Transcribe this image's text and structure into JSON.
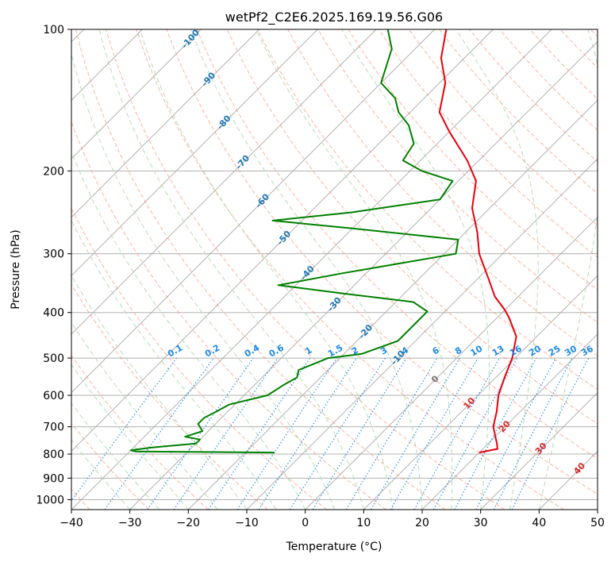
{
  "chart_data": {
    "type": "skew-t",
    "title": "wetPf2_C2E6.2025.169.19.56.G06",
    "xlabel": "Temperature (°C)",
    "ylabel": "Pressure (hPa)",
    "xlim": [
      -40,
      50
    ],
    "ylim": [
      1050,
      100
    ],
    "y_scale": "log",
    "grid": true,
    "x_ticks": [
      "−40",
      "−30",
      "−20",
      "−10",
      "0",
      "10",
      "20",
      "30",
      "40",
      "50"
    ],
    "y_ticks": [
      "100",
      "200",
      "300",
      "400",
      "500",
      "600",
      "700",
      "800",
      "900",
      "1000"
    ],
    "temperature_profile": {
      "color": "#e8000b",
      "points": [
        [
          794,
          20
        ],
        [
          780,
          22.5
        ],
        [
          760,
          21.5
        ],
        [
          700,
          18
        ],
        [
          650,
          16
        ],
        [
          600,
          13.5
        ],
        [
          550,
          11.5
        ],
        [
          500,
          9.5
        ],
        [
          450,
          6.5
        ],
        [
          410,
          2
        ],
        [
          395,
          0
        ],
        [
          370,
          -4
        ],
        [
          340,
          -8
        ],
        [
          300,
          -14
        ],
        [
          270,
          -18
        ],
        [
          240,
          -23
        ],
        [
          210,
          -27
        ],
        [
          190,
          -32
        ],
        [
          165,
          -40
        ],
        [
          150,
          -45
        ],
        [
          130,
          -49
        ],
        [
          115,
          -54
        ],
        [
          100,
          -58
        ]
      ]
    },
    "dewpoint_profile": {
      "color": "#008000",
      "points": [
        [
          794,
          -15
        ],
        [
          790,
          -39
        ],
        [
          785,
          -40
        ],
        [
          775,
          -37
        ],
        [
          760,
          -30
        ],
        [
          745,
          -30
        ],
        [
          735,
          -33
        ],
        [
          715,
          -31
        ],
        [
          690,
          -33
        ],
        [
          670,
          -33
        ],
        [
          650,
          -32
        ],
        [
          628,
          -31
        ],
        [
          600,
          -26
        ],
        [
          570,
          -25
        ],
        [
          550,
          -24
        ],
        [
          530,
          -25
        ],
        [
          510,
          -23
        ],
        [
          500,
          -22
        ],
        [
          490,
          -17
        ],
        [
          460,
          -13
        ],
        [
          420,
          -13
        ],
        [
          398,
          -13
        ],
        [
          380,
          -17
        ],
        [
          365,
          -30
        ],
        [
          350,
          -43
        ],
        [
          330,
          -34
        ],
        [
          300,
          -18
        ],
        [
          280,
          -20
        ],
        [
          265,
          -40
        ],
        [
          255,
          -55
        ],
        [
          245,
          -43
        ],
        [
          230,
          -30
        ],
        [
          210,
          -31
        ],
        [
          200,
          -38
        ],
        [
          190,
          -43
        ],
        [
          175,
          -44
        ],
        [
          160,
          -48
        ],
        [
          150,
          -52
        ],
        [
          140,
          -55
        ],
        [
          130,
          -60
        ],
        [
          110,
          -64
        ],
        [
          100,
          -68
        ]
      ]
    },
    "dry_adiabats": {
      "color": "#fc9272",
      "labels": [
        {
          "text": "-100",
          "p": 105,
          "color": "#1f77b4"
        },
        {
          "text": "-90",
          "p": 128,
          "color": "#1f77b4"
        },
        {
          "text": "-80",
          "p": 158,
          "color": "#1f77b4"
        },
        {
          "text": "-70",
          "p": 192,
          "color": "#1f77b4"
        },
        {
          "text": "-60",
          "p": 232,
          "color": "#1f77b4"
        },
        {
          "text": "-50",
          "p": 278,
          "color": "#1f77b4"
        },
        {
          "text": "-40",
          "p": 330,
          "color": "#1f77b4"
        },
        {
          "text": "-30",
          "p": 385,
          "color": "#1f77b4"
        },
        {
          "text": "-20",
          "p": 440,
          "color": "#1f77b4"
        },
        {
          "text": "-10",
          "p": 500,
          "color": "#1f77b4"
        },
        {
          "text": "0",
          "p": 555,
          "color": "#777777"
        },
        {
          "text": "10",
          "p": 625,
          "color": "#d62728"
        },
        {
          "text": "20",
          "p": 700,
          "color": "#d62728"
        },
        {
          "text": "30",
          "p": 780,
          "color": "#d62728"
        },
        {
          "text": "40",
          "p": 860,
          "color": "#d62728"
        }
      ]
    },
    "moist_adiabats": {
      "color": "#b6dbb4"
    },
    "mixing_ratio_lines": {
      "color": "#1e88e5",
      "labels": [
        "0.1",
        "0.2",
        "0.4",
        "0.6",
        "1",
        "1.5",
        "2",
        "3",
        "4",
        "6",
        "8",
        "10",
        "13",
        "16",
        "20",
        "25",
        "30",
        "36"
      ],
      "label_pressure": 500
    }
  }
}
